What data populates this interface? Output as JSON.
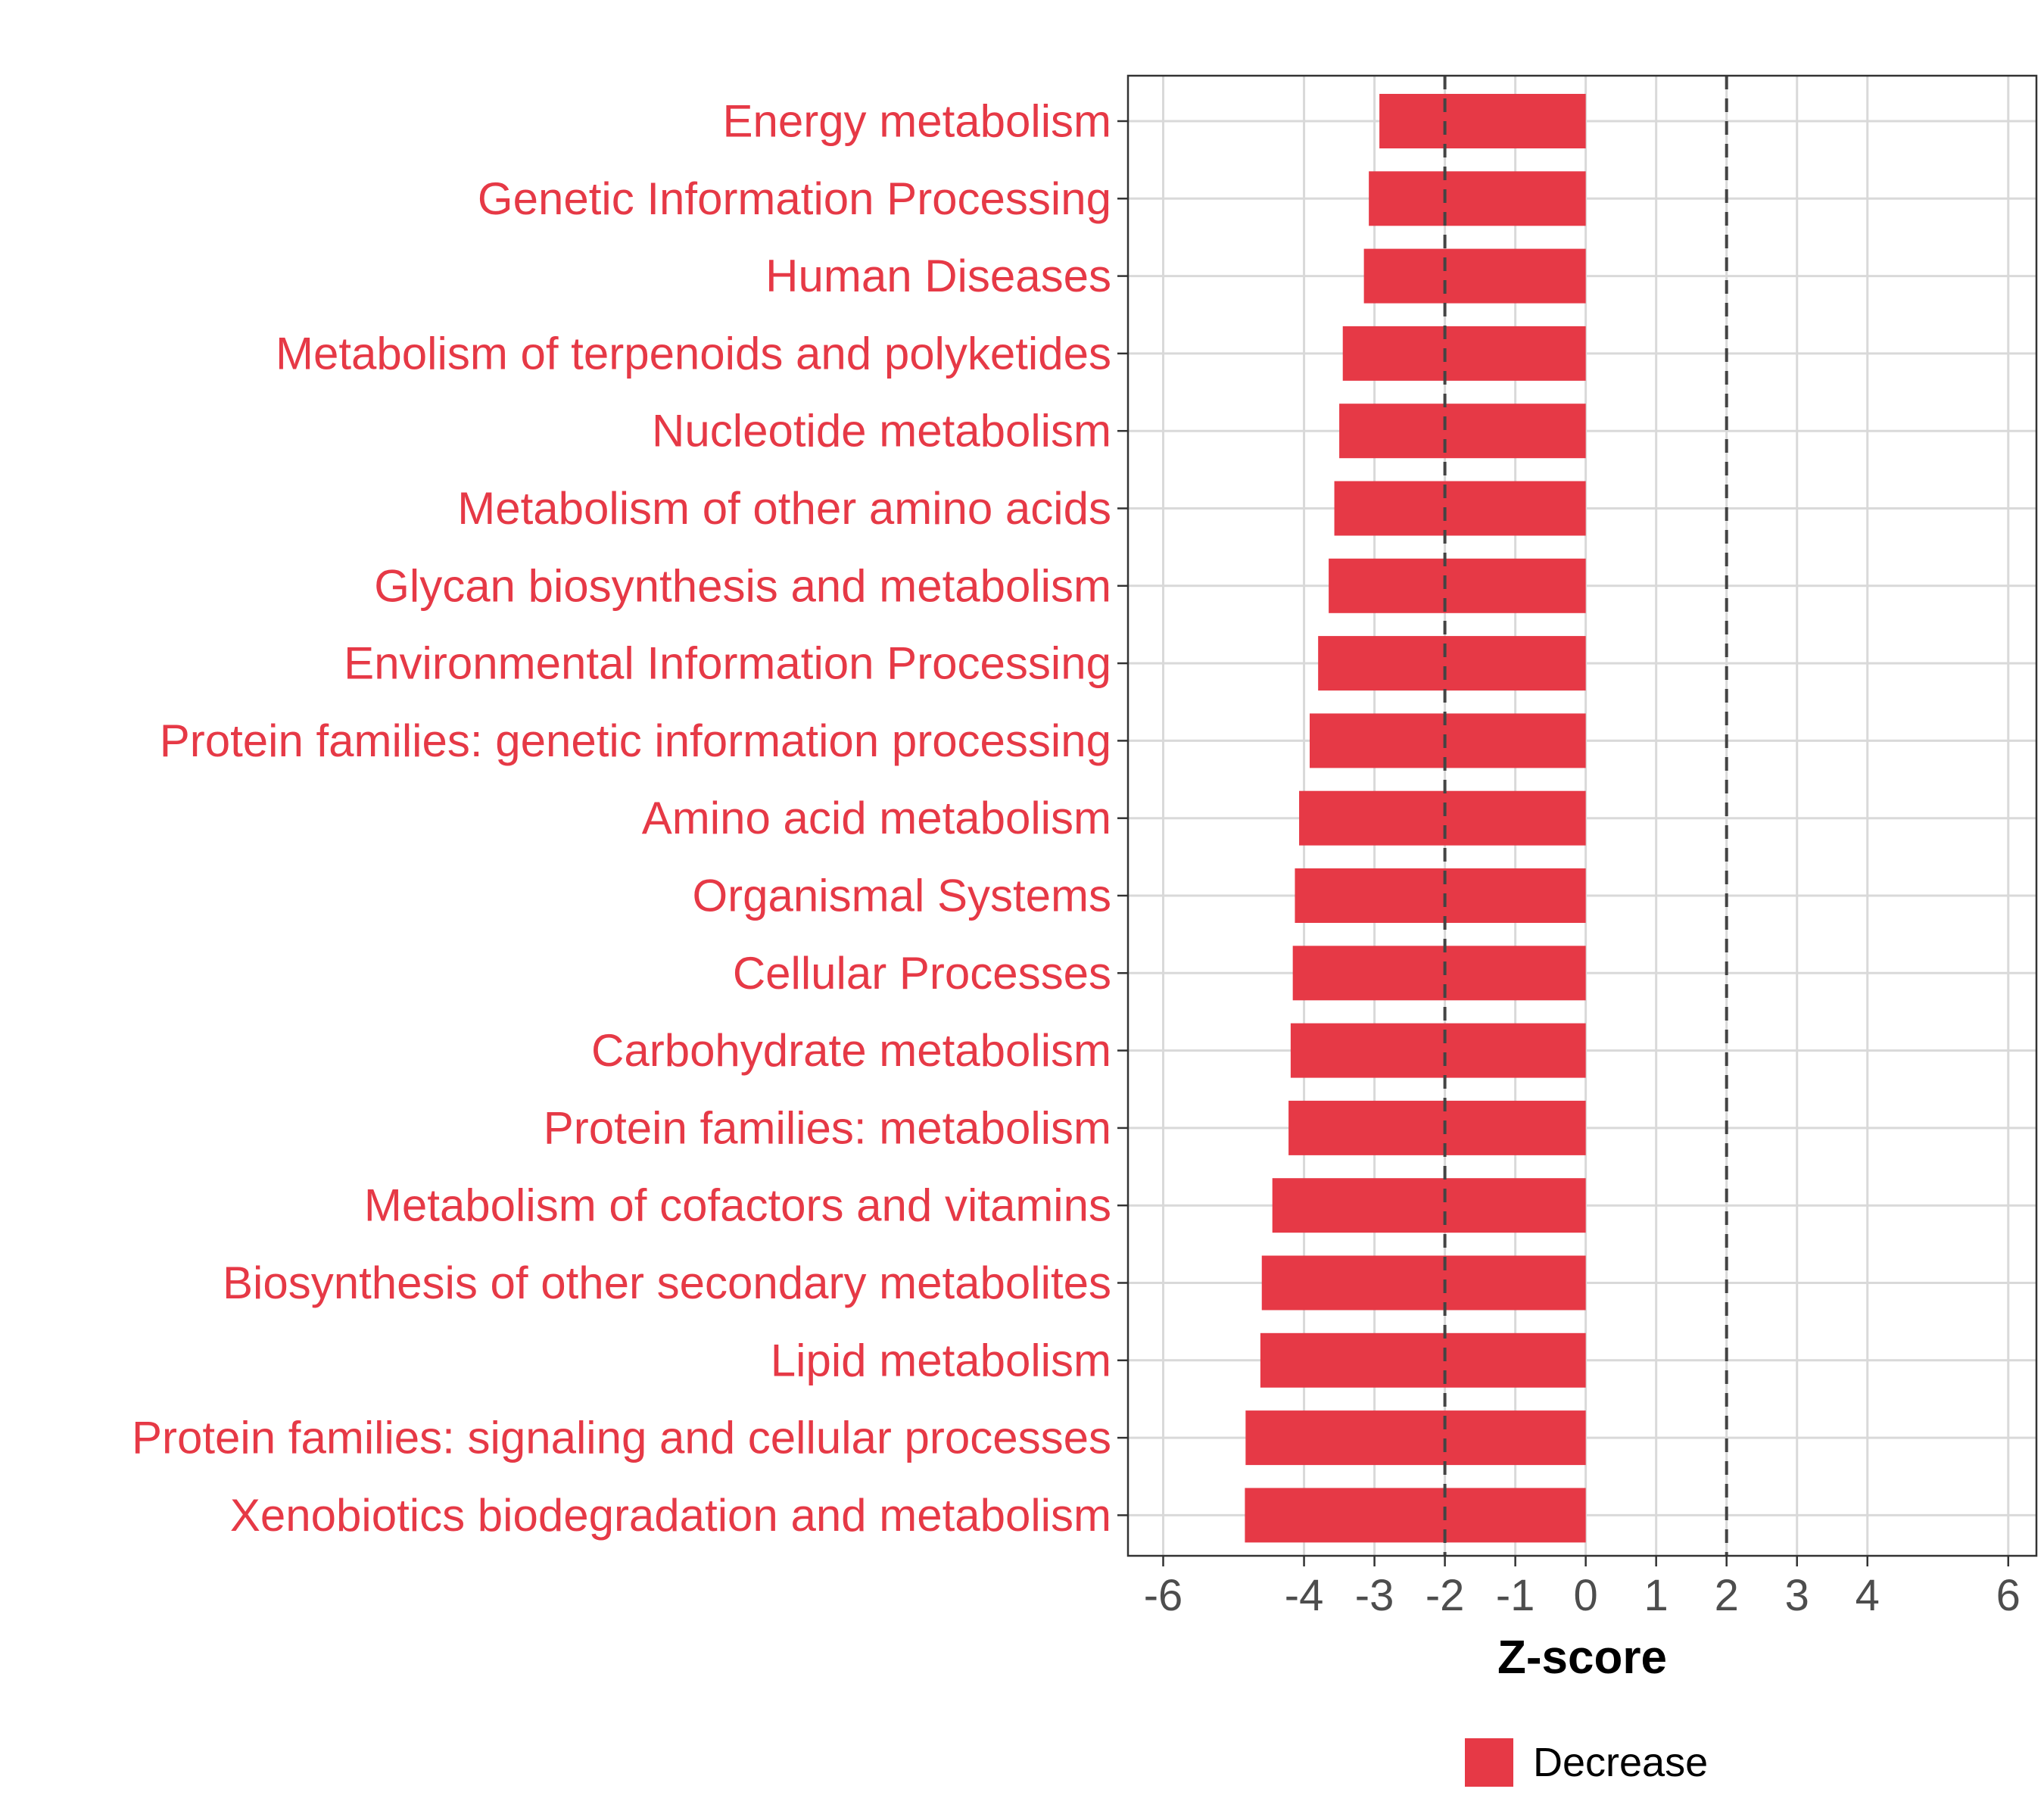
{
  "chart_data": {
    "type": "bar",
    "orientation": "horizontal",
    "title": "",
    "xlabel": "Z-score",
    "ylabel": "",
    "xlim": [
      -6.5,
      6.4
    ],
    "x_ticks": [
      -6,
      -4,
      -3,
      -2,
      -1,
      0,
      1,
      2,
      3,
      4,
      6
    ],
    "reference_lines": [
      -2,
      2
    ],
    "grid": true,
    "legend_position": "bottom",
    "categories": [
      "Energy metabolism",
      "Genetic Information Processing",
      "Human Diseases",
      "Metabolism of terpenoids and polyketides",
      "Nucleotide metabolism",
      "Metabolism of other amino acids",
      "Glycan biosynthesis and metabolism",
      "Environmental Information Processing",
      "Protein families: genetic information processing",
      "Amino acid metabolism",
      "Organismal Systems",
      "Cellular Processes",
      "Carbohydrate metabolism",
      "Protein families: metabolism",
      "Metabolism of cofactors and vitamins",
      "Biosynthesis of other secondary metabolites",
      "Lipid metabolism",
      "Protein families: signaling and cellular processes",
      "Xenobiotics biodegradation and metabolism"
    ],
    "series": [
      {
        "name": "Decrease",
        "color": "#E63946",
        "values": [
          -2.93,
          -3.08,
          -3.15,
          -3.45,
          -3.5,
          -3.57,
          -3.65,
          -3.8,
          -3.92,
          -4.07,
          -4.13,
          -4.16,
          -4.19,
          -4.22,
          -4.45,
          -4.6,
          -4.62,
          -4.83,
          -4.84
        ]
      }
    ]
  }
}
